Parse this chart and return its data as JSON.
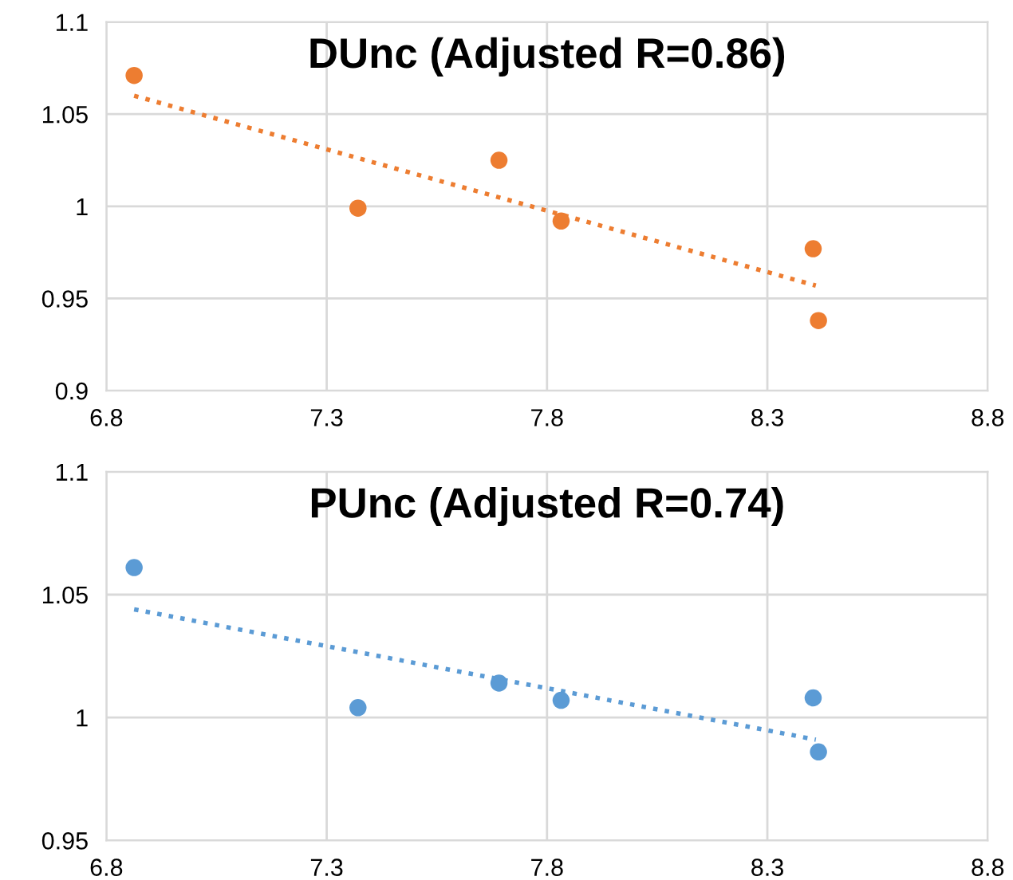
{
  "chart_data": [
    {
      "type": "scatter",
      "title": "DUnc (Adjusted R=0.86)",
      "xlim": [
        6.8,
        8.8
      ],
      "xticks": [
        6.8,
        7.3,
        7.8,
        8.3,
        8.8
      ],
      "ylim": [
        0.9,
        1.1
      ],
      "yticks": [
        0.9,
        0.95,
        1,
        1.05,
        1.1
      ],
      "grid": true,
      "series": [
        {
          "marker": "circle",
          "color": "#ed7d31",
          "x": [
            6.863,
            7.371,
            7.691,
            7.832,
            8.404,
            8.416
          ],
          "values": [
            1.071,
            0.999,
            1.025,
            0.992,
            0.977,
            0.938
          ]
        },
        {
          "type": "line",
          "line_style": "dotted",
          "color": "#ed7d31",
          "x": [
            6.863,
            8.41
          ],
          "values": [
            1.06,
            0.957
          ]
        }
      ]
    },
    {
      "type": "scatter",
      "title": "PUnc (Adjusted R=0.74)",
      "xlim": [
        6.8,
        8.8
      ],
      "xticks": [
        6.8,
        7.3,
        7.8,
        8.3,
        8.8
      ],
      "ylim": [
        0.95,
        1.1
      ],
      "yticks": [
        0.95,
        1,
        1.05,
        1.1
      ],
      "grid": true,
      "series": [
        {
          "marker": "circle",
          "color": "#5b9bd5",
          "x": [
            6.863,
            7.371,
            7.691,
            7.832,
            8.404,
            8.416
          ],
          "values": [
            1.061,
            1.004,
            1.014,
            1.007,
            1.008,
            0.986
          ]
        },
        {
          "type": "line",
          "line_style": "dotted",
          "color": "#5b9bd5",
          "x": [
            6.863,
            8.41
          ],
          "values": [
            1.044,
            0.991
          ]
        }
      ]
    }
  ]
}
